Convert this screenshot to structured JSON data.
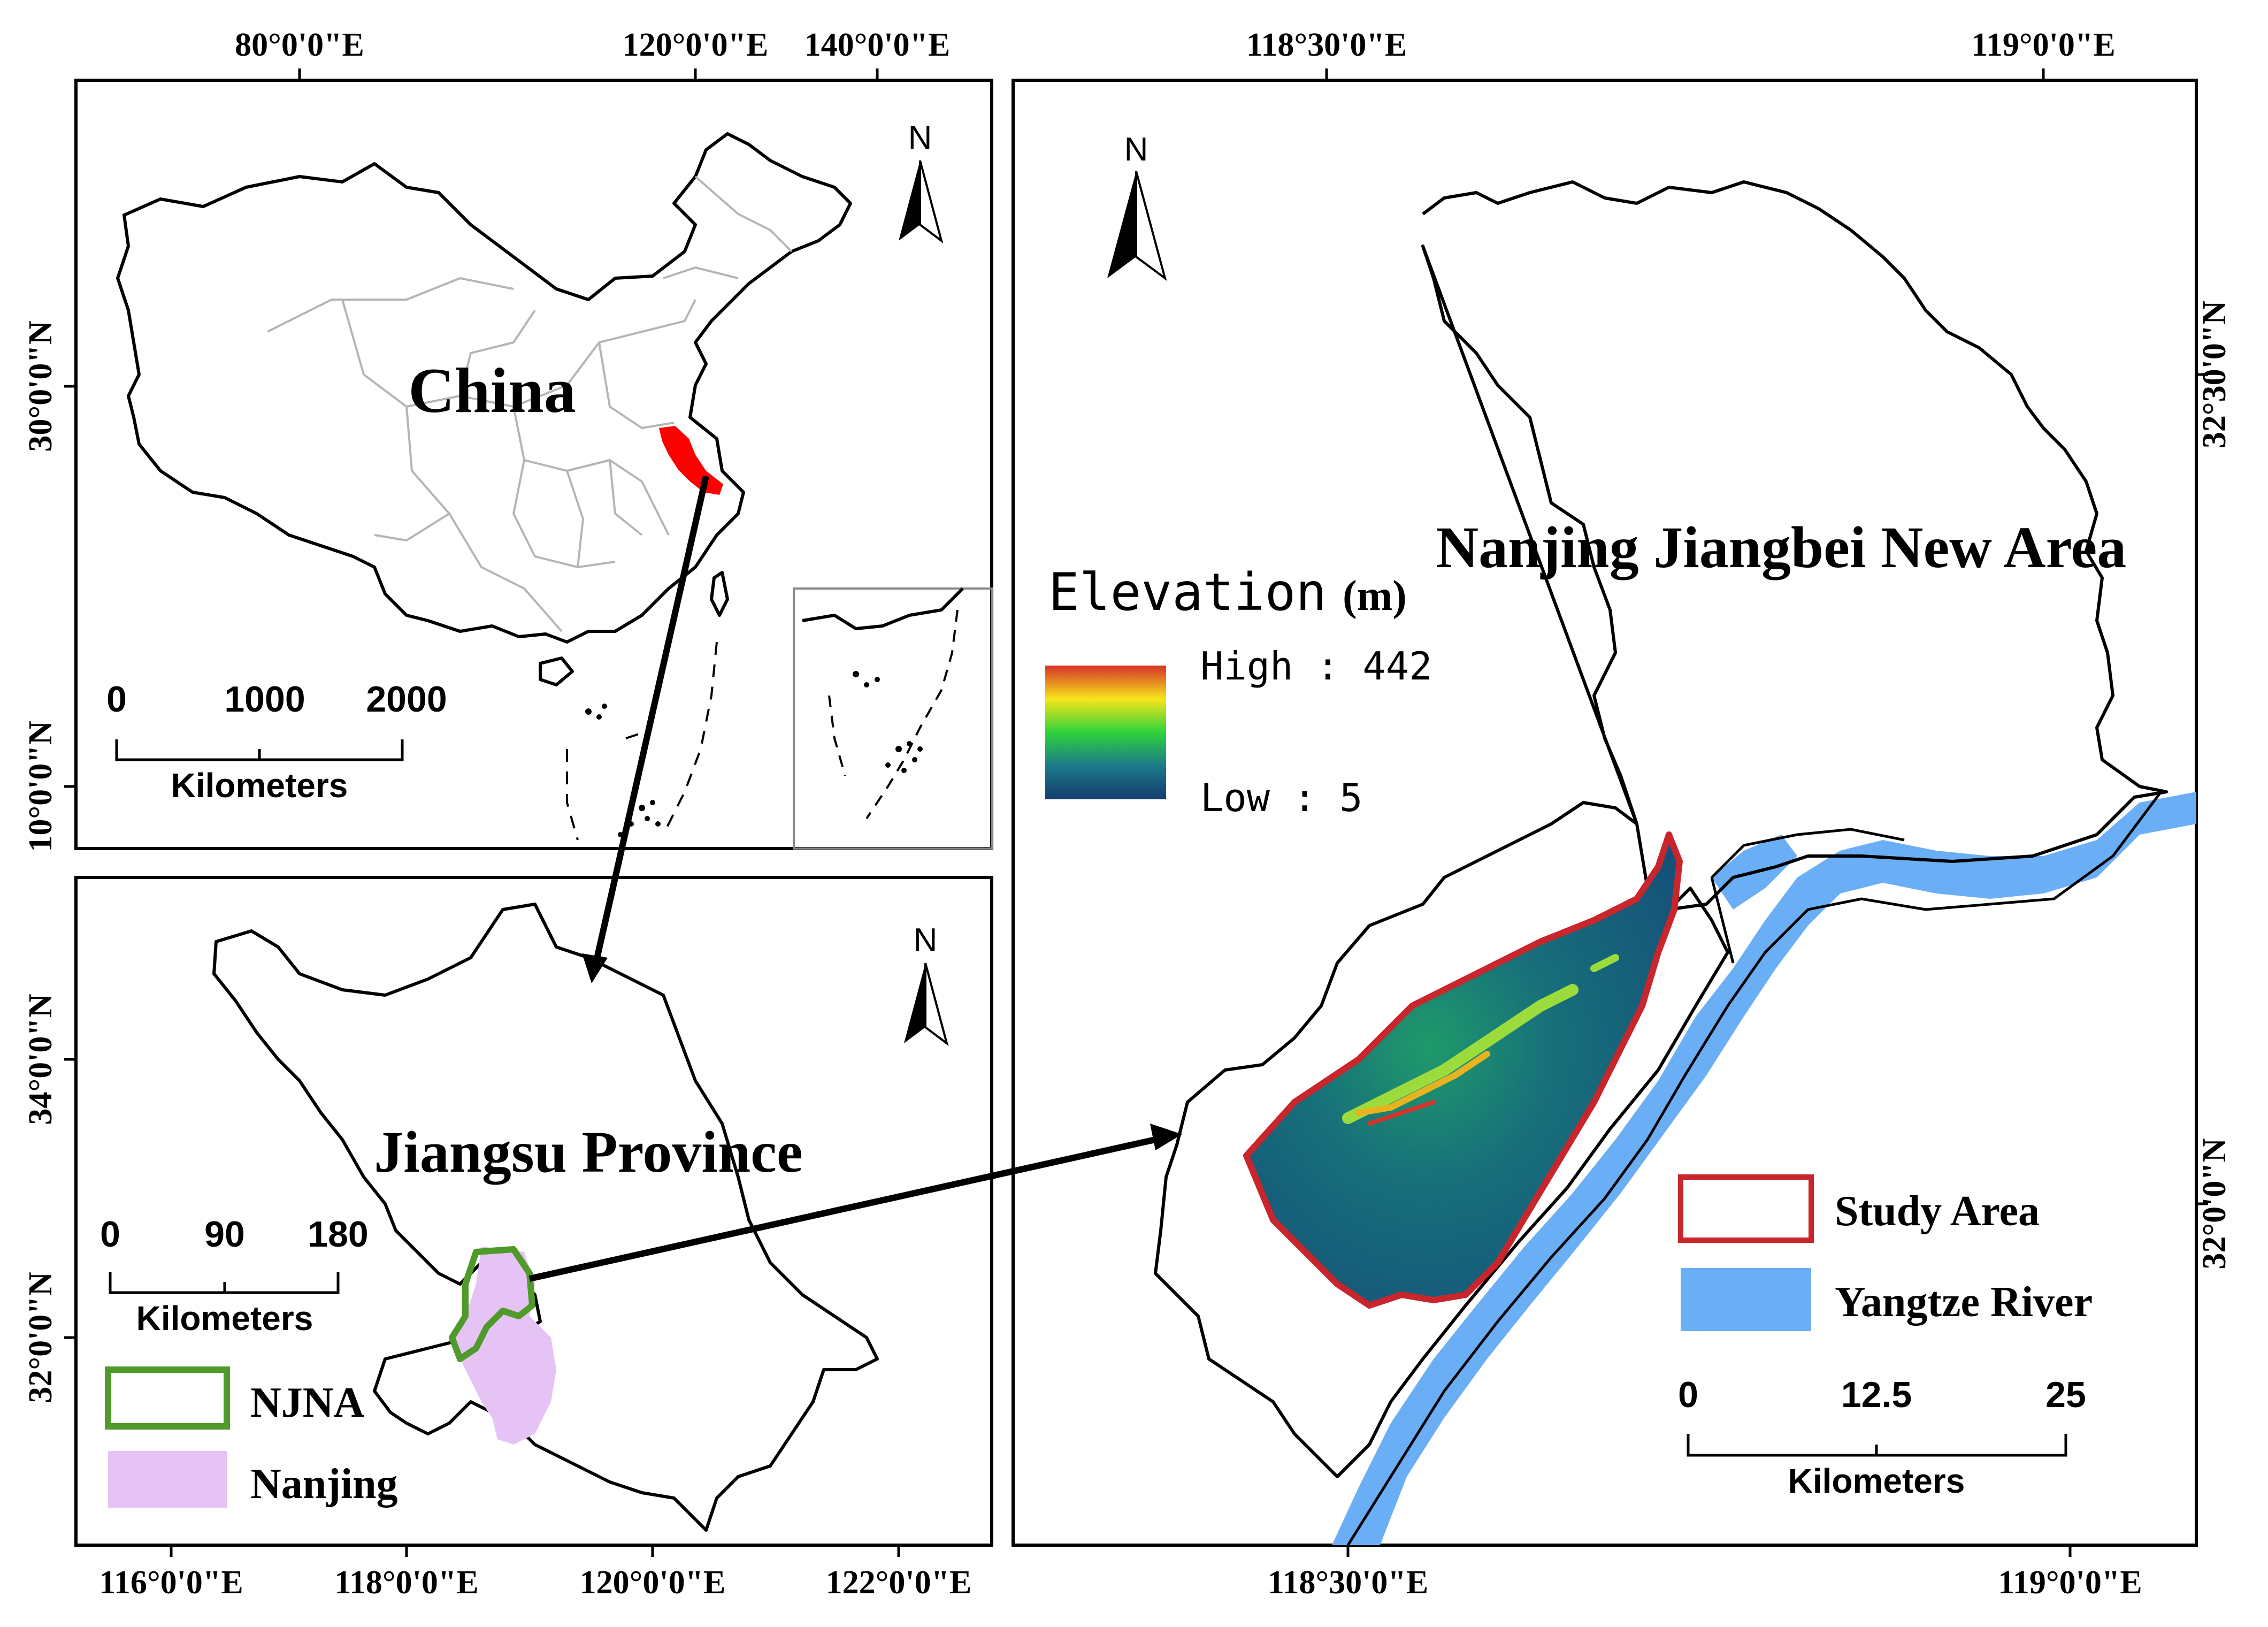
{
  "panels": {
    "china": {
      "title": "China",
      "top_ticks": [
        "80°0'0\"E",
        "120°0'0\"E",
        "140°0'0\"E"
      ],
      "left_ticks": [
        "30°0'0\"N",
        "10°0'0\"N"
      ],
      "scale": {
        "values": [
          "0",
          "1000",
          "2000"
        ],
        "unit": "Kilometers"
      },
      "north": "N"
    },
    "jiangsu": {
      "title": "Jiangsu Province",
      "bottom_ticks": [
        "116°0'0\"E",
        "118°0'0\"E",
        "120°0'0\"E",
        "122°0'0\"E"
      ],
      "left_ticks": [
        "34°0'0\"N",
        "32°0'0\"N"
      ],
      "scale": {
        "values": [
          "0",
          "90",
          "180"
        ],
        "unit": "Kilometers"
      },
      "north": "N",
      "legend": [
        {
          "label": "NJNA",
          "color": "#4f9a2a",
          "kind": "outline"
        },
        {
          "label": "Nanjing",
          "color": "#e6c3f5",
          "kind": "fill"
        }
      ]
    },
    "jiangbei": {
      "title": "Nanjing Jiangbei New Area",
      "top_ticks": [
        "118°30'0\"E",
        "119°0'0\"E"
      ],
      "bottom_ticks": [
        "118°30'0\"E",
        "119°0'0\"E"
      ],
      "right_ticks": [
        "32°30'0\"N",
        "32°0'0\"N"
      ],
      "elevation": {
        "title": "Elevation",
        "unit": "(m)",
        "high": "High : 442",
        "low": "Low : 5"
      },
      "legend": [
        {
          "label": "Study Area",
          "color": "#c9252c",
          "kind": "outline"
        },
        {
          "label": "Yangtze River",
          "color": "#6aaef5",
          "kind": "fill"
        }
      ],
      "scale": {
        "values": [
          "0",
          "12.5",
          "25"
        ],
        "unit": "Kilometers"
      },
      "north": "N"
    }
  },
  "colors": {
    "highlight_jiangsu": "#ff0000",
    "river": "#6aaef5",
    "study_area_border": "#c9252c",
    "njna_outline": "#4f9a2a",
    "nanjing_fill": "#e6c3f5"
  }
}
